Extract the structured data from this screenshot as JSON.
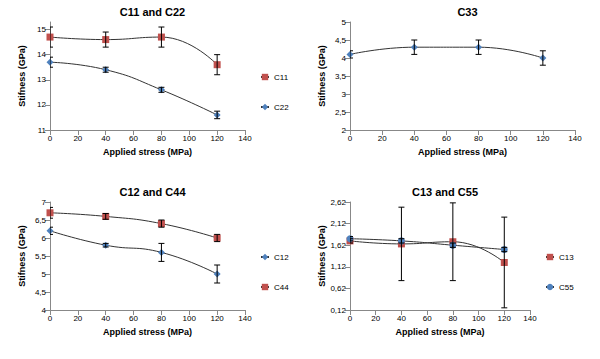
{
  "chart_data": [
    {
      "type": "line",
      "title": "C11 and C22",
      "x_label": "Applied stress (MPa)",
      "y_label": "Stifness (GPa)",
      "x": [
        0,
        40,
        80,
        120
      ],
      "xlim": [
        0,
        140
      ],
      "xticks": [
        0,
        20,
        40,
        60,
        80,
        100,
        120,
        140
      ],
      "ylim": [
        11,
        15.3
      ],
      "yticks": [
        11,
        12,
        13,
        14,
        15
      ],
      "grid": false,
      "legend": "right",
      "series": [
        {
          "name": "C11",
          "color": "#c0504d",
          "marker": "square",
          "values": [
            14.7,
            14.6,
            14.7,
            13.6
          ],
          "errors": [
            0.4,
            0.3,
            0.4,
            0.4
          ]
        },
        {
          "name": "C22",
          "color": "#4f81bd",
          "marker": "diamond",
          "values": [
            13.7,
            13.4,
            12.6,
            11.6
          ],
          "errors": [
            0.2,
            0.1,
            0.1,
            0.15
          ]
        }
      ]
    },
    {
      "type": "line",
      "title": "C33",
      "x_label": "Applied stress (MPa)",
      "y_label": "Stifness (GPa)",
      "x": [
        0,
        40,
        80,
        120
      ],
      "xlim": [
        0,
        140
      ],
      "xticks": [
        0,
        20,
        40,
        60,
        80,
        100,
        120,
        140
      ],
      "ylim": [
        2,
        5
      ],
      "yticks": [
        2,
        {
          "value": 2.5,
          "label": "2,5"
        },
        3,
        {
          "value": 3.5,
          "label": "3,5"
        },
        4,
        {
          "value": 4.5,
          "label": "4,5"
        },
        5
      ],
      "grid": false,
      "series": [
        {
          "color": "#4f81bd",
          "marker": "diamond",
          "values": [
            4.1,
            4.3,
            4.3,
            4.0
          ],
          "errors": [
            0.1,
            0.2,
            0.2,
            0.2
          ]
        }
      ]
    },
    {
      "type": "line",
      "title": "C12 and C44",
      "x_label": "Applied stress (MPa)",
      "y_label": "Stifness (GPa)",
      "x": [
        0,
        40,
        80,
        120
      ],
      "xlim": [
        0,
        140
      ],
      "xticks": [
        0,
        20,
        40,
        60,
        80,
        100,
        120,
        140
      ],
      "ylim": [
        4,
        7
      ],
      "yticks": [
        4,
        {
          "value": 4.5,
          "label": "4,5"
        },
        5,
        {
          "value": 5.5,
          "label": "5,5"
        },
        6,
        {
          "value": 6.5,
          "label": "6,5"
        },
        7
      ],
      "grid": false,
      "legend": "right",
      "series": [
        {
          "name": "C12",
          "color": "#4f81bd",
          "marker": "diamond",
          "values": [
            6.2,
            5.8,
            5.6,
            5.0
          ],
          "errors": [
            0.1,
            0.05,
            0.25,
            0.25
          ]
        },
        {
          "name": "C44",
          "color": "#c0504d",
          "marker": "square",
          "values": [
            6.7,
            6.6,
            6.4,
            6.0
          ],
          "errors": [
            0.15,
            0.08,
            0.1,
            0.1
          ]
        }
      ]
    },
    {
      "type": "line",
      "title": "C13 and C55",
      "x_label": "Applied stress (MPa)",
      "y_label": "Stifness (GPa)",
      "x": [
        0,
        40,
        80,
        120
      ],
      "xlim": [
        0,
        140
      ],
      "xticks": [
        0,
        20,
        40,
        60,
        80,
        100,
        120,
        140
      ],
      "ylim": [
        0.12,
        2.62
      ],
      "yticks": [
        {
          "value": 0.12,
          "label": "0,12"
        },
        {
          "value": 0.62,
          "label": "0,62"
        },
        {
          "value": 1.12,
          "label": "1,12"
        },
        {
          "value": 1.62,
          "label": "1,62"
        },
        {
          "value": 2.12,
          "label": "2,12"
        },
        {
          "value": 2.62,
          "label": "2,62"
        }
      ],
      "grid": false,
      "legend": "right",
      "series": [
        {
          "name": "C13",
          "color": "#c0504d",
          "marker": "square",
          "values": [
            1.72,
            1.65,
            1.7,
            1.22
          ],
          "errors": [
            0.05,
            0.85,
            0.9,
            1.05
          ]
        },
        {
          "name": "C55",
          "color": "#4f81bd",
          "marker": "circle",
          "values": [
            1.77,
            1.72,
            1.62,
            1.52
          ],
          "errors": [
            0.05,
            0.05,
            0.05,
            0.05
          ]
        }
      ]
    }
  ]
}
